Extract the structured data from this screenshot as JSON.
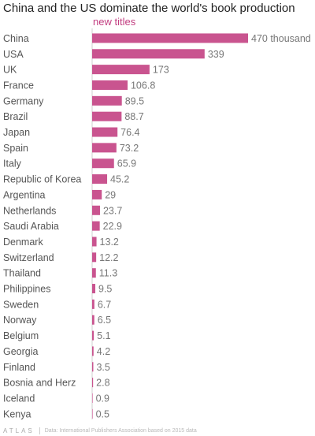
{
  "chart_data": {
    "type": "bar",
    "orientation": "horizontal",
    "title": "China and the US dominate the world's book production",
    "series": [
      {
        "name": "new titles",
        "color": "#c9548f",
        "values": [
          470,
          339,
          173,
          106.8,
          89.5,
          88.7,
          76.4,
          73.2,
          65.9,
          45.2,
          29,
          23.7,
          22.9,
          13.2,
          12.2,
          11.3,
          9.5,
          6.7,
          6.5,
          5.1,
          4.2,
          3.5,
          2.8,
          0.9,
          0.5
        ]
      }
    ],
    "categories": [
      "China",
      "USA",
      "UK",
      "France",
      "Germany",
      "Brazil",
      "Japan",
      "Spain",
      "Italy",
      "Republic of Korea",
      "Argentina",
      "Netherlands",
      "Saudi Arabia",
      "Denmark",
      "Switzerland",
      "Thailand",
      "Philippines",
      "Sweden",
      "Norway",
      "Belgium",
      "Georgia",
      "Finland",
      "Bosnia and Herz",
      "Iceland",
      "Kenya"
    ],
    "value_labels": [
      "470 thousand",
      "339",
      "173",
      "106.8",
      "89.5",
      "88.7",
      "76.4",
      "73.2",
      "65.9",
      "45.2",
      "29",
      "23.7",
      "22.9",
      "13.2",
      "12.2",
      "11.3",
      "9.5",
      "6.7",
      "6.5",
      "5.1",
      "4.2",
      "3.5",
      "2.8",
      "0.9",
      "0.5"
    ],
    "xlim": [
      0,
      470
    ],
    "grid": false,
    "legend": "top"
  },
  "footer": {
    "logo": "ATLAS",
    "source": "Data: International Publishers Association based on 2015 data"
  }
}
